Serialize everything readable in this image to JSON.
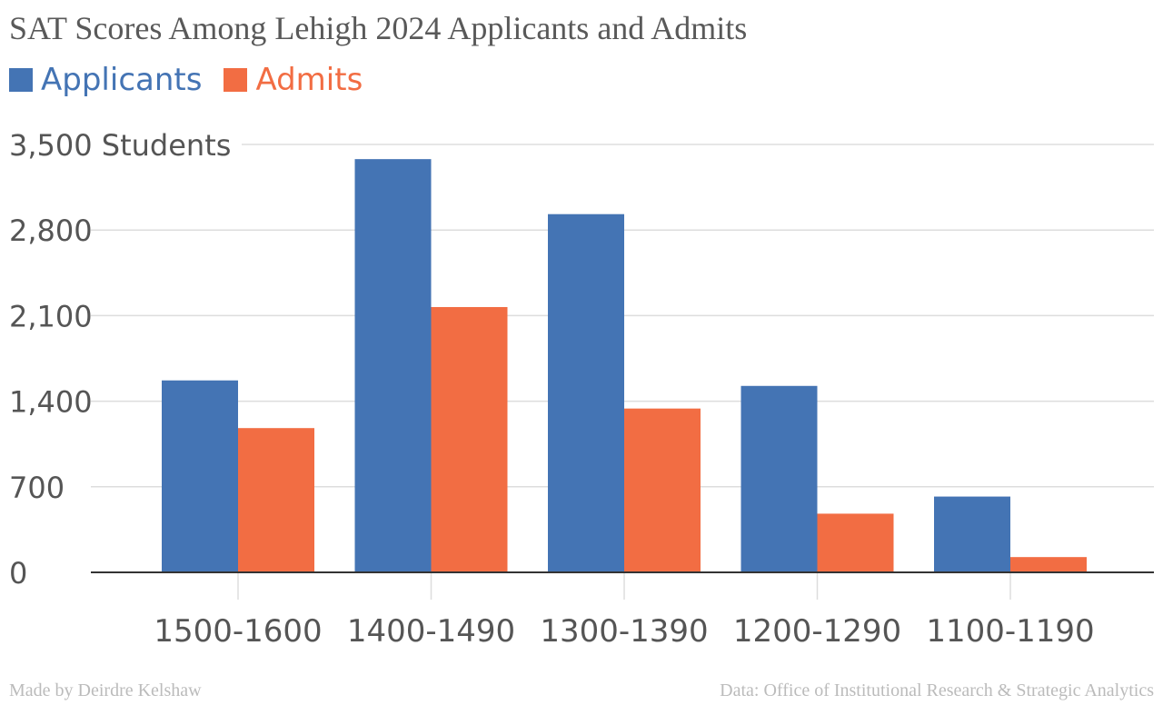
{
  "chart_data": {
    "type": "bar",
    "title": "SAT Scores Among Lehigh 2024 Applicants and Admits",
    "categories": [
      "1500-1600",
      "1400-1490",
      "1300-1390",
      "1200-1290",
      "1100-1190"
    ],
    "series": [
      {
        "name": "Applicants",
        "color": "#4474b4",
        "values": [
          1570,
          3380,
          2930,
          1525,
          620
        ]
      },
      {
        "name": "Admits",
        "color": "#f26d43",
        "values": [
          1180,
          2170,
          1340,
          480,
          125
        ]
      }
    ],
    "ylim": [
      0,
      3500
    ],
    "yticks": [
      {
        "value": 0,
        "label": "0"
      },
      {
        "value": 700,
        "label": "700"
      },
      {
        "value": 1400,
        "label": "1,400"
      },
      {
        "value": 2100,
        "label": "2,100"
      },
      {
        "value": 2800,
        "label": "2,800"
      },
      {
        "value": 3500,
        "label": "3,500 Students"
      }
    ],
    "xlabel": "",
    "ylabel": "Students",
    "grid": true,
    "legend_position": "top-left"
  },
  "footer": {
    "credit": "Made by Deirdre Kelshaw",
    "source": "Data: Office of Institutional Research & Strategic Analytics"
  }
}
